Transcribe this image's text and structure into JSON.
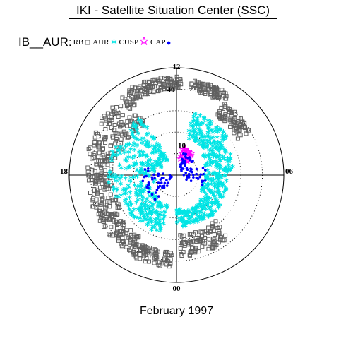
{
  "title": "IKI - Satellite Situation Center (SSC)",
  "legend": {
    "title": "IB__AUR:",
    "items": [
      {
        "label": "RB",
        "symbol": "square",
        "color": "#606060"
      },
      {
        "label": "AUR",
        "symbol": "asterisk",
        "color": "#00e5e5"
      },
      {
        "label": "CUSP",
        "symbol": "star",
        "color": "#ff00ff"
      },
      {
        "label": "CAP",
        "symbol": "dot",
        "color": "#0000ff"
      }
    ]
  },
  "footer": "February 1997",
  "chart_data": {
    "type": "scatter",
    "projection": "polar (MLT vs invariant latitude)",
    "mlt_labels": {
      "top": "12",
      "bottom": "00",
      "left": "18",
      "right": "06"
    },
    "latitude_labels": [
      "40",
      "10"
    ],
    "series": [
      {
        "name": "RB",
        "symbol": "square",
        "color": "#606060",
        "regions": [
          {
            "mlt": [
              12.6,
              14.2
            ],
            "colat": [
              40,
              45
            ]
          },
          {
            "mlt": [
              14.2,
              16.0
            ],
            "colat": [
              33,
              40
            ]
          },
          {
            "mlt": [
              10.0,
              12.2
            ],
            "colat": [
              40,
              46
            ]
          },
          {
            "mlt": [
              7.0,
              10.0
            ],
            "colat": [
              28,
              44
            ]
          },
          {
            "mlt": [
              4.0,
              7.0
            ],
            "colat": [
              30,
              42
            ]
          },
          {
            "mlt": [
              2.0,
              4.0
            ],
            "colat": [
              33,
              42
            ]
          },
          {
            "mlt": [
              0.2,
              2.0
            ],
            "colat": [
              36,
              43
            ]
          },
          {
            "mlt": [
              21.3,
              23.8
            ],
            "colat": [
              28,
              39
            ]
          }
        ]
      },
      {
        "name": "AUR",
        "symbol": "asterisk",
        "color": "#00e5e5",
        "regions": [
          {
            "mlt": [
              13.0,
              15.6
            ],
            "colat": [
              18,
              30
            ]
          },
          {
            "mlt": [
              15.6,
              17.8
            ],
            "colat": [
              14,
              27
            ]
          },
          {
            "mlt": [
              17.8,
              20.2
            ],
            "colat": [
              13,
              24
            ]
          },
          {
            "mlt": [
              20.2,
              21.6
            ],
            "colat": [
              16,
              25
            ]
          },
          {
            "mlt": [
              21.6,
              23.6
            ],
            "colat": [
              17,
              24
            ]
          },
          {
            "mlt": [
              4.5,
              10.0
            ],
            "colat": [
              8,
              32
            ]
          },
          {
            "mlt": [
              1.0,
              4.5
            ],
            "colat": [
              14,
              28
            ]
          },
          {
            "mlt": [
              23.6,
              24.0
            ],
            "colat": [
              16,
              22
            ]
          }
        ]
      },
      {
        "name": "CUSP",
        "symbol": "star",
        "color": "#ff00ff",
        "regions": [
          {
            "mlt": [
              12.7,
              14.6
            ],
            "colat": [
              7,
              13
            ]
          }
        ]
      },
      {
        "name": "CAP",
        "symbol": "dot",
        "color": "#0000ff",
        "regions": [
          {
            "mlt": [
              13.0,
              16.8
            ],
            "colat": [
              3,
              11
            ]
          },
          {
            "mlt": [
              16.8,
              19.6
            ],
            "colat": [
              3,
              14
            ]
          },
          {
            "mlt": [
              3.5,
              7.0
            ],
            "colat": [
              2,
              16
            ]
          },
          {
            "mlt": [
              2.5,
              3.5
            ],
            "colat": [
              5,
              16
            ]
          }
        ]
      }
    ]
  }
}
